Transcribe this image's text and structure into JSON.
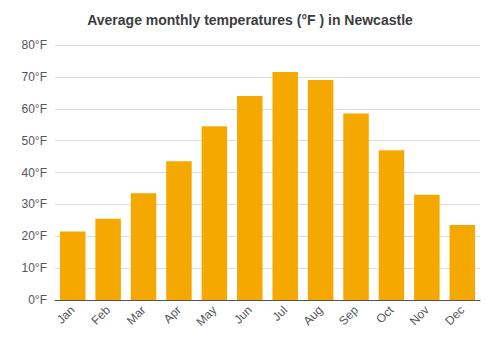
{
  "chart_data": {
    "type": "bar",
    "title": "Average monthly temperatures (°F ) in Newcastle",
    "categories": [
      "Jan",
      "Feb",
      "Mar",
      "Apr",
      "May",
      "Jun",
      "Jul",
      "Aug",
      "Sep",
      "Oct",
      "Nov",
      "Dec"
    ],
    "values": [
      21.5,
      25.5,
      33.5,
      43.5,
      54.5,
      64.0,
      71.5,
      69.0,
      58.5,
      47.0,
      33.0,
      23.5
    ],
    "color": "#F5A800",
    "ylim": [
      0,
      80
    ],
    "yticks": [
      {
        "value": 0,
        "label": "0°F"
      },
      {
        "value": 10,
        "label": "10°F"
      },
      {
        "value": 20,
        "label": "20°F"
      },
      {
        "value": 30,
        "label": "30°F"
      },
      {
        "value": 40,
        "label": "40°F"
      },
      {
        "value": 50,
        "label": "50°F"
      },
      {
        "value": 60,
        "label": "60°F"
      },
      {
        "value": 70,
        "label": "70°F"
      },
      {
        "value": 80,
        "label": "80°F"
      }
    ],
    "grid": true
  }
}
